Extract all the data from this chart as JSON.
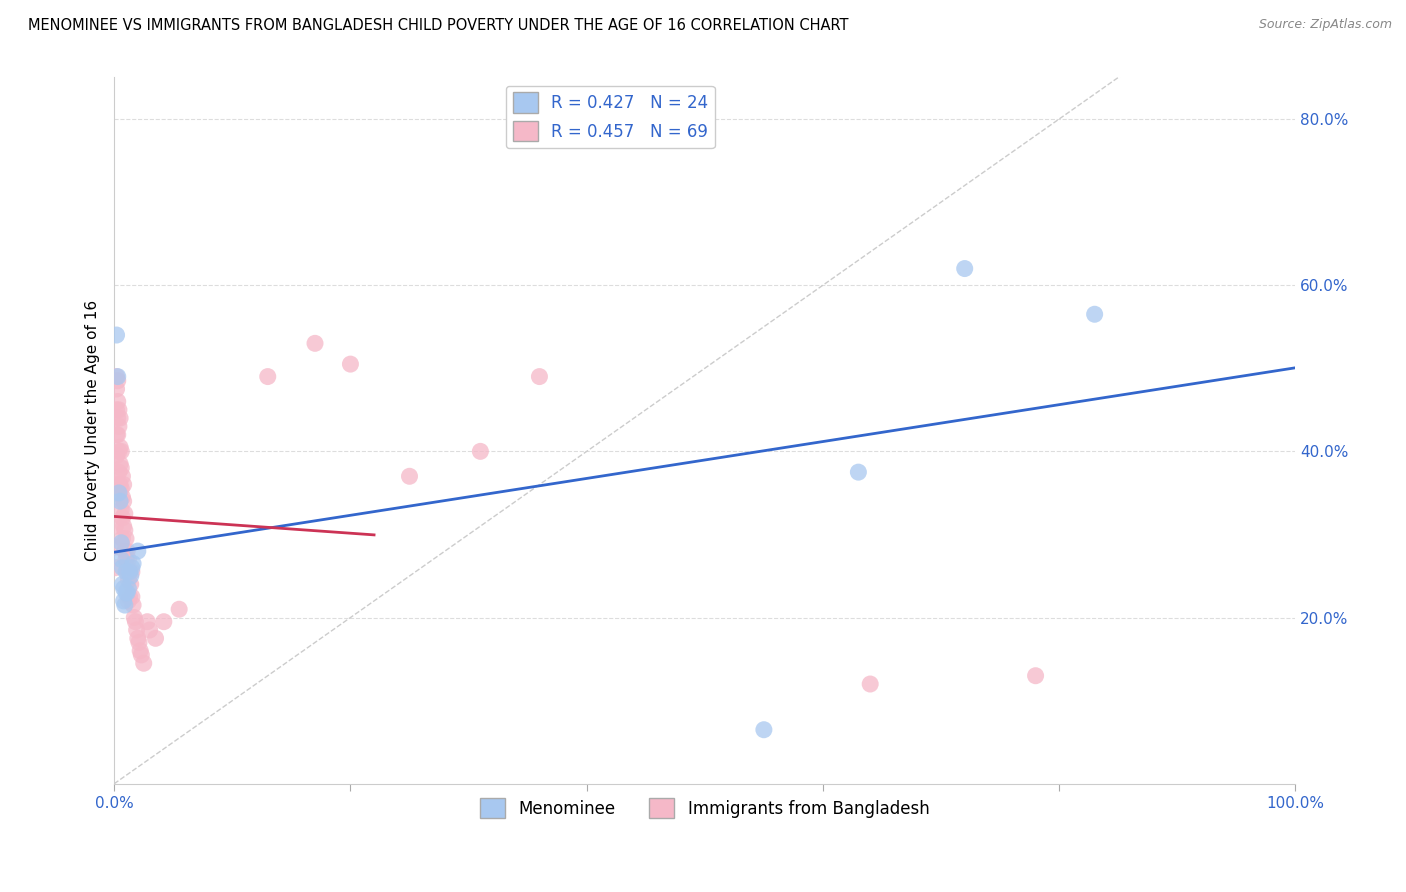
{
  "title": "MENOMINEE VS IMMIGRANTS FROM BANGLADESH CHILD POVERTY UNDER THE AGE OF 16 CORRELATION CHART",
  "source": "Source: ZipAtlas.com",
  "ylabel": "Child Poverty Under the Age of 16",
  "xlim": [
    0,
    1.0
  ],
  "ylim": [
    0,
    0.85
  ],
  "xticks": [
    0.0,
    0.2,
    0.4,
    0.6,
    0.8,
    1.0
  ],
  "xticklabels": [
    "0.0%",
    "",
    "",
    "",
    "",
    "100.0%"
  ],
  "yticks": [
    0.2,
    0.4,
    0.6,
    0.8
  ],
  "yticklabels": [
    "20.0%",
    "40.0%",
    "60.0%",
    "80.0%"
  ],
  "legend_labels": [
    "Menominee",
    "Immigrants from Bangladesh"
  ],
  "menominee_R": "0.427",
  "menominee_N": "24",
  "bangladesh_R": "0.457",
  "bangladesh_N": "69",
  "menominee_color": "#a8c8f0",
  "bangladesh_color": "#f5b8c8",
  "trendline_menominee_color": "#3366cc",
  "trendline_bangladesh_color": "#cc3355",
  "diagonal_color": "#cccccc",
  "menominee_x": [
    0.002,
    0.003,
    0.004,
    0.005,
    0.006,
    0.006,
    0.007,
    0.007,
    0.008,
    0.008,
    0.009,
    0.01,
    0.01,
    0.011,
    0.012,
    0.013,
    0.014,
    0.015,
    0.016,
    0.02,
    0.55,
    0.63,
    0.72,
    0.83
  ],
  "menominee_y": [
    0.54,
    0.49,
    0.35,
    0.34,
    0.29,
    0.27,
    0.26,
    0.24,
    0.235,
    0.22,
    0.215,
    0.255,
    0.23,
    0.23,
    0.235,
    0.255,
    0.25,
    0.26,
    0.265,
    0.28,
    0.065,
    0.375,
    0.62,
    0.565
  ],
  "bangladesh_x": [
    0.001,
    0.001,
    0.001,
    0.002,
    0.002,
    0.002,
    0.002,
    0.002,
    0.003,
    0.003,
    0.003,
    0.003,
    0.003,
    0.004,
    0.004,
    0.004,
    0.004,
    0.005,
    0.005,
    0.005,
    0.005,
    0.006,
    0.006,
    0.006,
    0.006,
    0.007,
    0.007,
    0.007,
    0.007,
    0.008,
    0.008,
    0.008,
    0.009,
    0.009,
    0.009,
    0.01,
    0.01,
    0.011,
    0.011,
    0.012,
    0.012,
    0.012,
    0.013,
    0.013,
    0.014,
    0.015,
    0.015,
    0.016,
    0.017,
    0.018,
    0.019,
    0.02,
    0.021,
    0.022,
    0.023,
    0.025,
    0.028,
    0.03,
    0.035,
    0.042,
    0.055,
    0.13,
    0.17,
    0.2,
    0.25,
    0.31,
    0.36,
    0.64,
    0.78
  ],
  "bangladesh_y": [
    0.31,
    0.285,
    0.26,
    0.49,
    0.475,
    0.45,
    0.42,
    0.395,
    0.485,
    0.46,
    0.44,
    0.42,
    0.36,
    0.45,
    0.43,
    0.4,
    0.375,
    0.44,
    0.405,
    0.385,
    0.36,
    0.4,
    0.38,
    0.355,
    0.33,
    0.37,
    0.345,
    0.32,
    0.295,
    0.36,
    0.34,
    0.31,
    0.325,
    0.305,
    0.28,
    0.295,
    0.27,
    0.28,
    0.255,
    0.27,
    0.245,
    0.22,
    0.255,
    0.225,
    0.24,
    0.255,
    0.225,
    0.215,
    0.2,
    0.195,
    0.185,
    0.175,
    0.17,
    0.16,
    0.155,
    0.145,
    0.195,
    0.185,
    0.175,
    0.195,
    0.21,
    0.49,
    0.53,
    0.505,
    0.37,
    0.4,
    0.49,
    0.12,
    0.13
  ],
  "background_color": "#ffffff",
  "grid_color": "#dddddd",
  "title_fontsize": 10.5,
  "axis_label_fontsize": 11,
  "tick_fontsize": 11,
  "legend_fontsize": 12,
  "trendline_men_x0": 0.0,
  "trendline_men_x1": 1.0,
  "trendline_ban_x0": 0.0,
  "trendline_ban_x1": 0.22
}
